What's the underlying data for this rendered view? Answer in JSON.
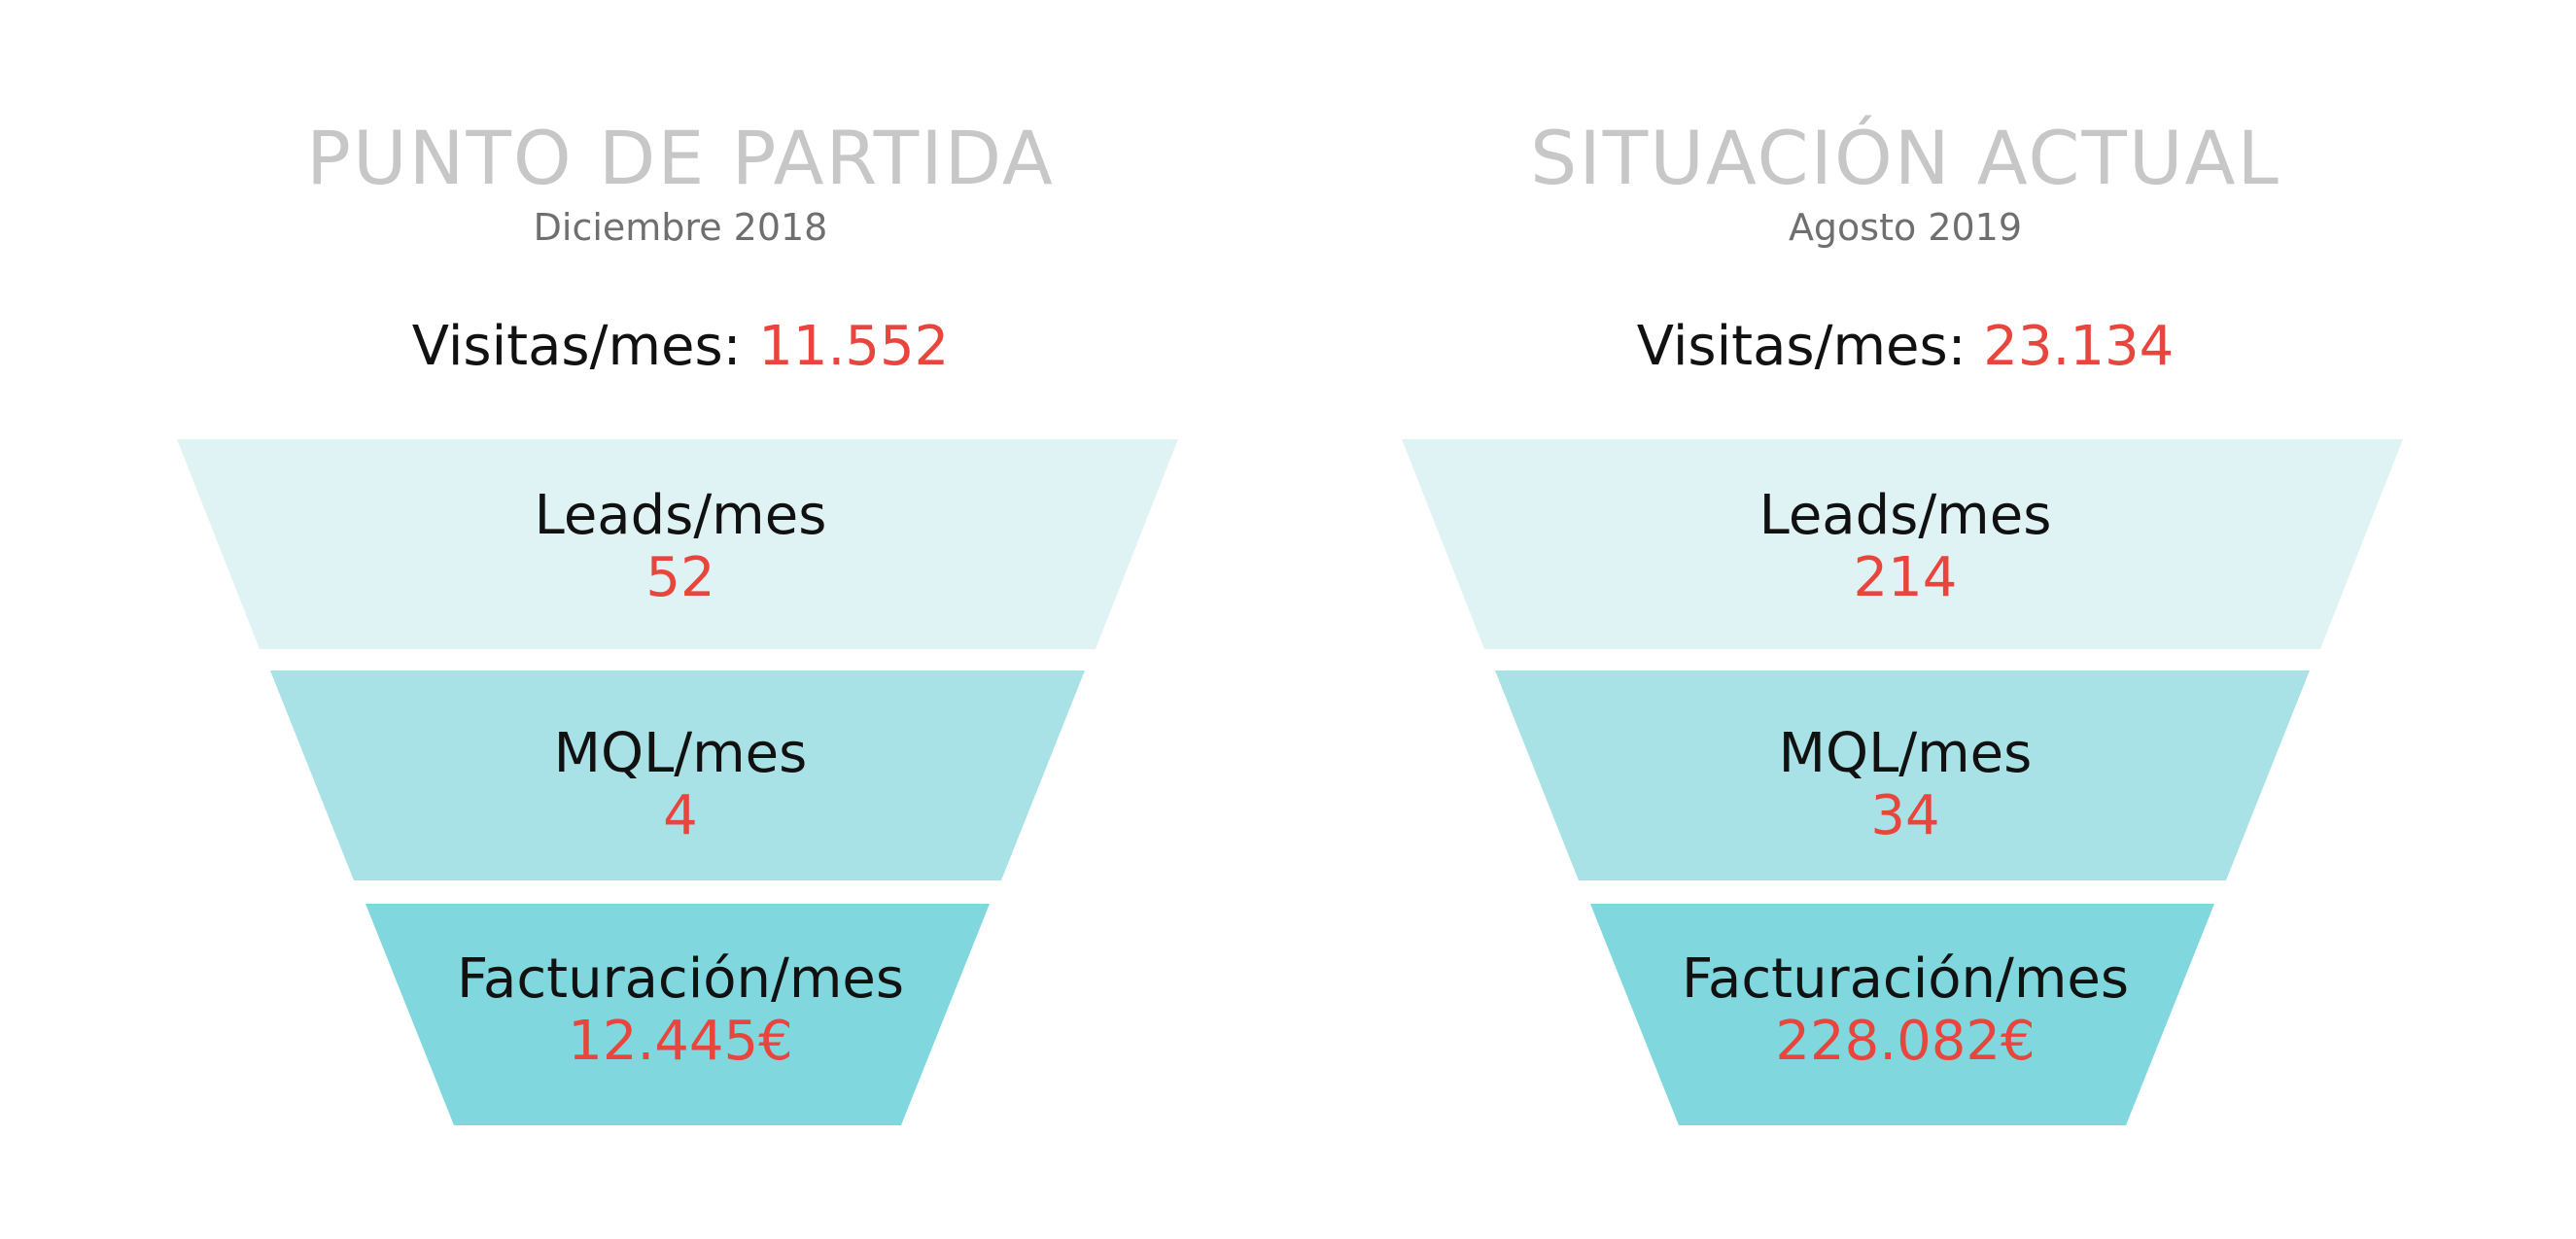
{
  "colors": {
    "stage1": "#e0f3f4",
    "stage2": "#a8e2e6",
    "stage3": "#80d8de",
    "title": "#c7c7c7",
    "value": "#e8453c"
  },
  "left": {
    "title": "PUNTO DE PARTIDA",
    "subtitle": "Diciembre 2018",
    "visits_label": "Visitas/mes: ",
    "visits_value": "11.552",
    "stages": [
      {
        "label": "Leads/mes",
        "value": "52"
      },
      {
        "label": "MQL/mes",
        "value": "4"
      },
      {
        "label": "Facturación/mes",
        "value": "12.445€"
      }
    ]
  },
  "right": {
    "title": "SITUACIÓN ACTUAL",
    "subtitle": "Agosto 2019",
    "visits_label": "Visitas/mes: ",
    "visits_value": "23.134",
    "stages": [
      {
        "label": "Leads/mes",
        "value": "214"
      },
      {
        "label": "MQL/mes",
        "value": "34"
      },
      {
        "label": "Facturación/mes",
        "value": "228.082€"
      }
    ]
  }
}
